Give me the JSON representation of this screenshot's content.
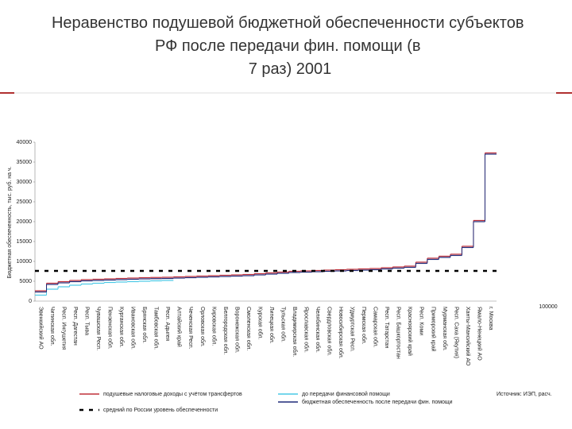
{
  "chart_data": {
    "type": "step",
    "title": "Неравенство подушевой бюджетной обеспеченности субъектов РФ после передачи фин. помощи (в 7 раз) 2001",
    "y_label": "Бюджетная обеспеченность, тыс. руб. на ч.",
    "categories": [
      "Эвенкийский АО",
      "Читинская обл.",
      "Респ. Ингушетия",
      "Респ. Дагестан",
      "Респ. Тыва",
      "Чувашская Респ.",
      "Пензенская обл.",
      "Курганская обл.",
      "Ивановская обл.",
      "Брянская обл.",
      "Тамбовская обл.",
      "Респ. Адыгея",
      "Алтайский край",
      "Чеченская Респ.",
      "Орловская обл.",
      "Кировская обл.",
      "Белгородская обл.",
      "Воронежская обл.",
      "Смоленская обл.",
      "Курская обл.",
      "Липецкая обл.",
      "Тульская обл.",
      "Владимирская обл.",
      "Ярославская обл.",
      "Челябинская обл.",
      "Свердловская обл.",
      "Новосибирская обл.",
      "Удмуртская Респ.",
      "Пермская обл.",
      "Самарская обл.",
      "Респ. Татарстан",
      "Респ. Башкортостан",
      "Красноярский край",
      "Респ. Коми",
      "Приморский край",
      "Мурманская обл.",
      "Респ. Саха (Якутия)",
      "Ханты-Мансийский АО",
      "Ямало-Ненецкий АО",
      "г. Москва"
    ],
    "series": [
      {
        "name": "подушевые налоговые доходы с учётом трансфертов",
        "color": "#c0303a",
        "values": [
          2600,
          4500,
          4900,
          5200,
          5400,
          5500,
          5600,
          5700,
          5800,
          5900,
          5950,
          6000,
          6100,
          6200,
          6300,
          6400,
          6500,
          6600,
          6700,
          6900,
          7100,
          7300,
          7500,
          7600,
          7700,
          7800,
          7900,
          8000,
          8100,
          8200,
          8400,
          8600,
          8800,
          9800,
          10800,
          11300,
          11800,
          13800,
          20300,
          37300
        ]
      },
      {
        "name": "до передачи финансовой помощи",
        "color": "#49c8e6",
        "values": [
          1500,
          3000,
          3600,
          4000,
          4300,
          4500,
          4700,
          4800,
          4900,
          5000,
          5100,
          5200,
          null,
          null,
          null,
          null,
          null,
          null,
          null,
          null,
          null,
          null,
          null,
          null,
          null,
          null,
          null,
          null,
          null,
          null,
          null,
          null,
          null,
          null,
          null,
          null,
          null,
          null,
          null,
          null
        ]
      },
      {
        "name": "бюджетная обеспеченность после передачи фин. помощи",
        "color": "#1f2a78",
        "values": [
          2300,
          4200,
          4600,
          4900,
          5100,
          5200,
          5300,
          5400,
          5500,
          5600,
          5650,
          5700,
          5800,
          5900,
          6000,
          6100,
          6200,
          6300,
          6400,
          6600,
          6800,
          7000,
          7200,
          7300,
          7400,
          7500,
          7600,
          7700,
          7800,
          7900,
          8100,
          8300,
          8500,
          9500,
          10500,
          11000,
          11500,
          13500,
          20000,
          37000
        ]
      }
    ],
    "average": {
      "name": "средний по России уровень обеспеченности",
      "value": 7600,
      "color": "#000000"
    },
    "ylim": [
      0,
      40000
    ],
    "yticks": [
      0,
      5000,
      10000,
      15000,
      20000,
      25000,
      30000,
      35000,
      40000
    ],
    "side_label": "100000",
    "source": "Источник: ИЭП, расч."
  }
}
